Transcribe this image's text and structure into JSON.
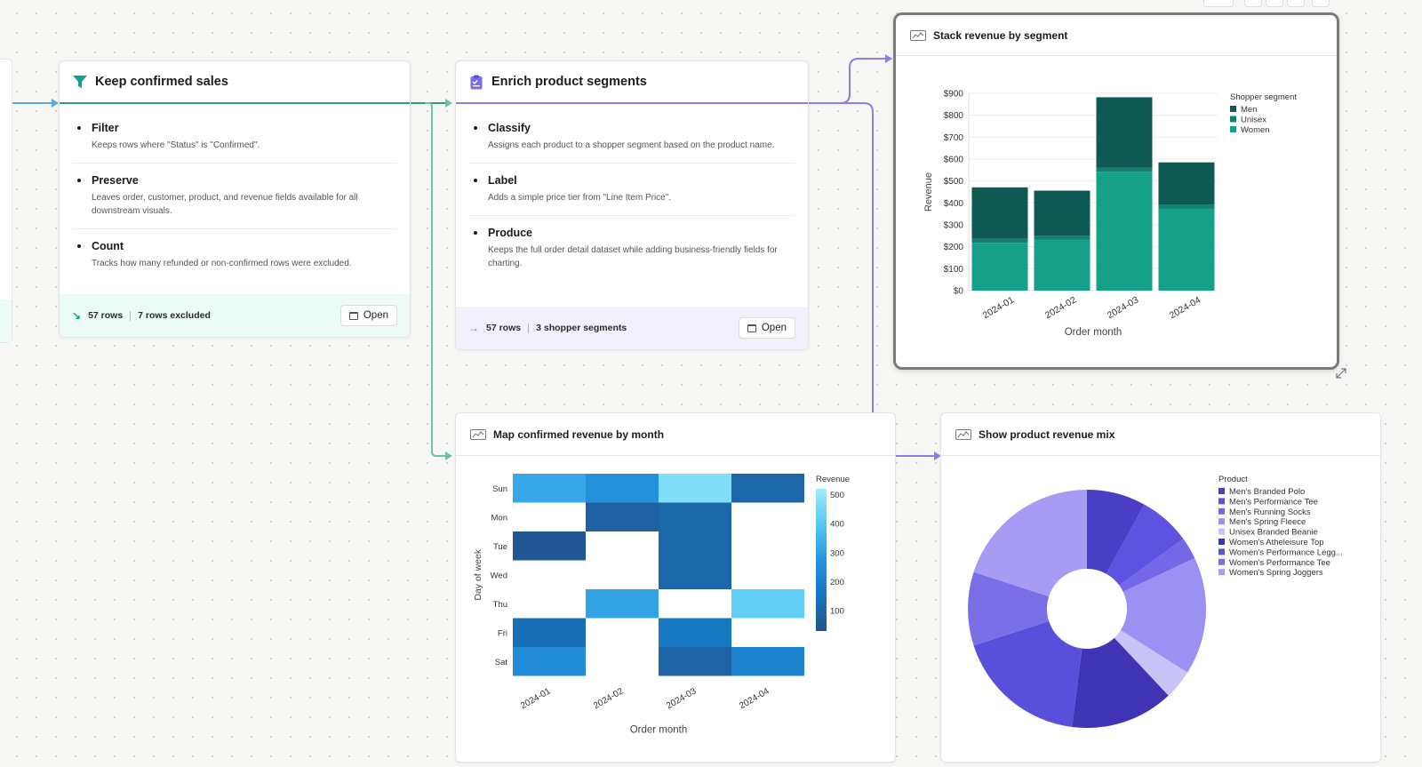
{
  "colors": {
    "teal": "#2f9e86",
    "teal_light": "#ecfbf6",
    "purple": "#8d7ee6",
    "purple_light": "#f2f0fc",
    "sky": "#5aa9df"
  },
  "cards": [
    {
      "title": "Keep confirmed sales",
      "icon": "filter-icon",
      "steps": [
        {
          "title": "Filter",
          "desc": "Keeps rows where \"Status\" is \"Confirmed\"."
        },
        {
          "title": "Preserve",
          "desc": "Leaves order, customer, product, and revenue fields available for all downstream visuals."
        },
        {
          "title": "Count",
          "desc": "Tracks how many refunded or non-confirmed rows were excluded."
        }
      ],
      "footer": {
        "arrow": "↘",
        "rows": "57 rows",
        "extra": "7 rows excluded",
        "open_label": "Open"
      }
    },
    {
      "title": "Enrich product segments",
      "icon": "clipboard-icon",
      "steps": [
        {
          "title": "Classify",
          "desc": "Assigns each product to a shopper segment based on the product name."
        },
        {
          "title": "Label",
          "desc": "Adds a simple price tier from \"Line Item Price\"."
        },
        {
          "title": "Produce",
          "desc": "Keeps the full order detail dataset while adding business-friendly fields for charting."
        }
      ],
      "footer": {
        "arrow": "→",
        "rows": "57 rows",
        "extra": "3 shopper segments",
        "open_label": "Open"
      }
    }
  ],
  "visuals": {
    "stack": {
      "title": "Stack revenue by segment"
    },
    "heatmap": {
      "title": "Map confirmed revenue by month"
    },
    "pie": {
      "title": "Show product revenue mix"
    }
  },
  "chart_data": [
    {
      "type": "bar",
      "stacked": true,
      "title": "Stack revenue by segment",
      "xlabel": "Order month",
      "ylabel": "Revenue",
      "categories": [
        "2024-01",
        "2024-02",
        "2024-03",
        "2024-04"
      ],
      "ylim": [
        0,
        900
      ],
      "yticks": [
        "$0",
        "$100",
        "$200",
        "$300",
        "$400",
        "$500",
        "$600",
        "$700",
        "$800",
        "$900"
      ],
      "legend_title": "Shopper segment",
      "legend_position": "top-right",
      "grid": true,
      "series": [
        {
          "name": "Men",
          "color": "#0f5a52",
          "values": [
            235,
            205,
            322,
            192
          ]
        },
        {
          "name": "Unisex",
          "color": "#127f6f",
          "values": [
            18,
            18,
            18,
            18
          ]
        },
        {
          "name": "Women",
          "color": "#16a08a",
          "values": [
            218,
            233,
            542,
            375
          ]
        }
      ]
    },
    {
      "type": "heatmap",
      "title": "Map confirmed revenue by month",
      "xlabel": "Order month",
      "ylabel": "Day of week",
      "x": [
        "2024-01",
        "2024-02",
        "2024-03",
        "2024-04"
      ],
      "y": [
        "Sun",
        "Mon",
        "Tue",
        "Wed",
        "Thu",
        "Fri",
        "Sat"
      ],
      "values": [
        [
          320,
          260,
          470,
          100
        ],
        [
          null,
          80,
          100,
          null
        ],
        [
          50,
          null,
          100,
          null
        ],
        [
          null,
          null,
          100,
          null
        ],
        [
          null,
          310,
          null,
          420
        ],
        [
          130,
          null,
          160,
          null
        ],
        [
          240,
          null,
          90,
          210
        ]
      ],
      "legend_title": "Revenue",
      "colorbar_ticks": [
        100,
        200,
        300,
        400,
        500
      ],
      "range": [
        30,
        520
      ]
    },
    {
      "type": "pie",
      "donut": true,
      "title": "Show product revenue mix",
      "legend_title": "Product",
      "labels": [
        "Men's Branded Polo",
        "Men's Performance Tee",
        "Men's Running Socks",
        "Men's Spring Fleece",
        "Unisex Branded Beanie",
        "Women's Atheleisure Top",
        "Women's Performance Legg...",
        "Women's Performance Tee",
        "Women's Spring Joggers"
      ],
      "colors": [
        "#4a3fc4",
        "#5e52e0",
        "#7568e8",
        "#9c90f2",
        "#c9c3f8",
        "#3f34b4",
        "#5a4fdb",
        "#7a6fe6",
        "#a79bf3"
      ],
      "values": [
        8,
        7,
        3,
        16,
        4,
        14,
        18,
        10,
        20
      ]
    }
  ]
}
